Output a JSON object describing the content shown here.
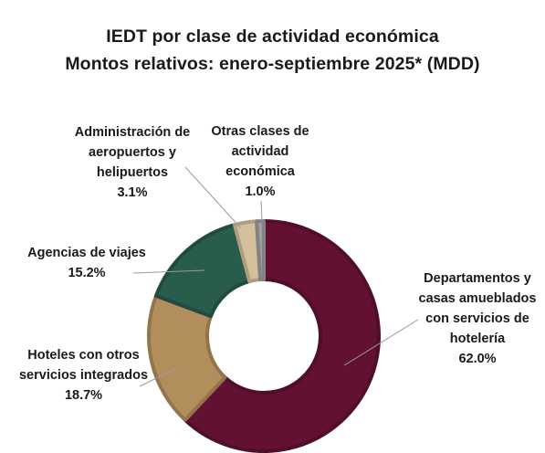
{
  "chart_data": {
    "type": "pie",
    "title": "IEDT por clase de actividad económica",
    "subtitle": "Montos relativos: enero-septiembre 2025* (MDD)",
    "slices": [
      {
        "label": "Departamentos y casas amueblados con servicios de hotelería",
        "value": 62.0,
        "value_label": "62.0%",
        "color": "#621132"
      },
      {
        "label": "Hoteles con otros servicios integrados",
        "value": 18.7,
        "value_label": "18.7%",
        "color": "#B38E5D"
      },
      {
        "label": "Agencias de viajes",
        "value": 15.2,
        "value_label": "15.2%",
        "color": "#285C4D"
      },
      {
        "label": "Administración de aeropuertos y helipuertos",
        "value": 3.1,
        "value_label": "3.1%",
        "color": "#D4C19C"
      },
      {
        "label": "Otras clases de actividad económica",
        "value": 1.0,
        "value_label": "1.0%",
        "color": "#A0A0A0"
      }
    ],
    "legend": "none"
  }
}
